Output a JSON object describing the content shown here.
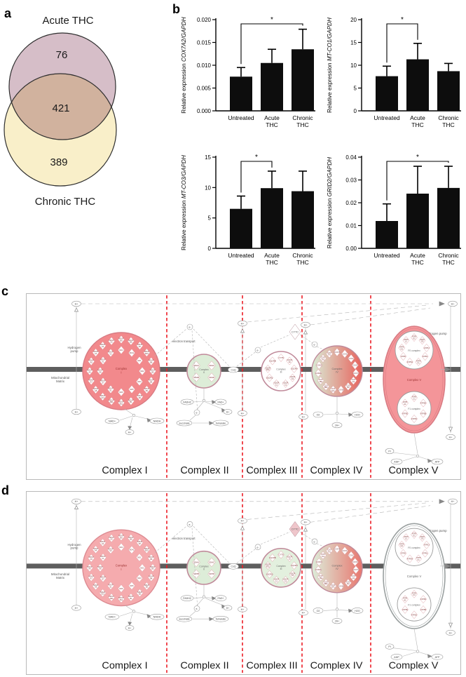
{
  "figure": {
    "panel_labels": {
      "a": "a",
      "b": "b",
      "c": "c",
      "d": "d"
    }
  },
  "venn": {
    "set1_label": "Acute THC",
    "set2_label": "Chronic THC",
    "set1_only": "76",
    "intersection": "421",
    "set2_only": "389",
    "colors": {
      "set1": "#d6bec8",
      "set2": "#f9efc9",
      "outline": "#2e2e2e"
    }
  },
  "chart_data": [
    {
      "type": "bar",
      "ylabel_prefix": "Relative expression ",
      "gene": "COX7A2/GAPDH",
      "categories": [
        [
          "Untreated"
        ],
        [
          "Acute",
          "THC"
        ],
        [
          "Chronic",
          "THC"
        ]
      ],
      "values": [
        0.0075,
        0.0105,
        0.0135
      ],
      "errors": [
        0.002,
        0.003,
        0.0044
      ],
      "ymax": 0.02,
      "ytick_values": [
        0,
        0.005,
        0.01,
        0.015,
        0.02
      ],
      "ytick_labels": [
        "0.000",
        "0.005",
        "0.010",
        "0.015",
        "0.020"
      ],
      "sig": {
        "from": 0,
        "to": 2,
        "label": "*"
      },
      "bar_color": "#0d0d0d"
    },
    {
      "type": "bar",
      "ylabel_prefix": "Relative expression ",
      "gene": "MT-CO1/GAPDH",
      "categories": [
        [
          "Untreated"
        ],
        [
          "Acute",
          "THC"
        ],
        [
          "Chronic",
          "THC"
        ]
      ],
      "values": [
        7.6,
        11.3,
        8.7
      ],
      "errors": [
        2.2,
        3.5,
        1.7
      ],
      "ymax": 20,
      "ytick_values": [
        0,
        5,
        10,
        15,
        20
      ],
      "ytick_labels": [
        "0",
        "5",
        "10",
        "15",
        "20"
      ],
      "sig": {
        "from": 0,
        "to": 1,
        "label": "*"
      },
      "bar_color": "#0d0d0d"
    },
    {
      "type": "bar",
      "ylabel_prefix": "Relative expression ",
      "gene": "MT-CO3/GAPDH",
      "categories": [
        [
          "Untreated"
        ],
        [
          "Acute",
          "THC"
        ],
        [
          "Chronic",
          "THC"
        ]
      ],
      "values": [
        6.5,
        9.9,
        9.4
      ],
      "errors": [
        2.1,
        2.8,
        3.3
      ],
      "ymax": 15,
      "ytick_values": [
        0,
        5,
        10,
        15
      ],
      "ytick_labels": [
        "0",
        "5",
        "10",
        "15"
      ],
      "sig": {
        "from": 0,
        "to": 1,
        "label": "*"
      },
      "bar_color": "#0d0d0d"
    },
    {
      "type": "bar",
      "ylabel_prefix": "Relative expression ",
      "gene": "GRID2/GAPDH",
      "categories": [
        [
          "Untreated"
        ],
        [
          "Acute",
          "THC"
        ],
        [
          "Chronic",
          "THC"
        ]
      ],
      "values": [
        0.012,
        0.024,
        0.0265
      ],
      "errors": [
        0.0075,
        0.012,
        0.0095
      ],
      "ymax": 0.04,
      "ytick_values": [
        0,
        0.01,
        0.02,
        0.03,
        0.04
      ],
      "ytick_labels": [
        "0.00",
        "0.01",
        "0.02",
        "0.03",
        "0.04"
      ],
      "sig": {
        "from": 0,
        "to": 2,
        "label": "*"
      },
      "bar_color": "#0d0d0d"
    }
  ],
  "pathway": {
    "shared": {
      "membrane_label": [
        "Mitochondrial",
        "Matrix"
      ],
      "hydrogen_pump": [
        "Hydrogen",
        "pump"
      ],
      "hydrogen_pump_right": "Hydrogen pump",
      "electron_transport": "electron transport",
      "hplus": "H+",
      "eminus": "e-",
      "nad": "NAD+",
      "nadh": "NADH",
      "fadh2": "FADH2",
      "fad": "FAD+",
      "succinate": "succinate",
      "fumarate": "fumarate",
      "coq": "CoQ",
      "cytc": "CYTC",
      "o2": "O2",
      "h2o": "H2O",
      "twoh": "2H+",
      "pi": "Pi",
      "adp": "ADP",
      "atp": "ATP",
      "f0": "F0 complex",
      "f1": "F1 complex",
      "complex_labels": [
        "Complex I",
        "Complex II",
        "Complex III",
        "Complex IV",
        "Complex V"
      ],
      "complex_short": [
        "I",
        "II",
        "III",
        "IV",
        "V"
      ],
      "complex_word": "Complex",
      "genes": {
        "complex1_outer": [
          "NDUFB9",
          "NDUFB8",
          "NDUFB7",
          "NDUFB10",
          "NDUFB6",
          "NDUFB5",
          "NDUFB4",
          "NDUFB3",
          "NDUFB2",
          "NDUFB1",
          "NDUFB11",
          "NDUFAB1",
          "NDUFA13",
          "NDUFA8",
          "NDUFA7",
          "NDUFA6",
          "NDUFA5",
          "NDUFA4",
          "NDUFA3",
          "NDUFA2"
        ],
        "complex1_inner": [
          "ND4",
          "ND4L",
          "ND1",
          "ND2",
          "ND3",
          "ND5",
          "ND6",
          "NDUFS1",
          "NDUFS7",
          "NDUFS8",
          "NDUFV1",
          "NDUFV2"
        ],
        "complex2": [
          "SDHA",
          "SDHC",
          "SDHB",
          "SDHD"
        ],
        "complex3": [
          "CYTB",
          "UQCR10",
          "UQCRH",
          "UQCRC2",
          "UQCRC1",
          "UQCR11",
          "UQCRQ",
          "UQCRFS1",
          "UQCRB"
        ],
        "complex4": [
          "COX7B",
          "COX1",
          "COX2",
          "COX3",
          "COX7C",
          "COX4I1",
          "COX4I2",
          "COX5A",
          "COX6A1",
          "COX6B2",
          "COX7B2",
          "COX8A",
          "COX6C",
          "COX7A1",
          "COX7AL"
        ],
        "complex5_f0": [
          "ATP5G1",
          "ATP5G3",
          "ATP5J",
          "ATP5L",
          "ATP5F1",
          "ATP5H",
          "ATP5I",
          "ATP5G2",
          "ATP5L2"
        ],
        "complex5_f1": [
          "ATP5C1",
          "ATP5D",
          "ATP5B",
          "ATP5O",
          "ATP5E",
          "ATP5A1"
        ]
      }
    },
    "panels": {
      "c": {
        "colors": {
          "c1_fill": "#F2898C",
          "c1_stroke": "#D87C84",
          "c2_fill": "#DDEDD8",
          "c3_fill": "#FFFFFF",
          "c4_grad_left": "#D9ECD6",
          "c4_grad_right": "#E7625C",
          "c5_fill": "#F49599",
          "c5_stroke": "#D87C84",
          "cytc_fill": "#FFFFFF",
          "ring_stroke": "#C08A9A",
          "diamond_stroke": "#DFA0A6",
          "gene_text": "#7a2e2e"
        }
      },
      "d": {
        "colors": {
          "c1_fill": "#F5ABAE",
          "c1_stroke": "#DD8B92",
          "c2_fill": "#DDEDD8",
          "c3_fill": "#E3F0DE",
          "c4_grad_left": "#DCEDDA",
          "c4_grad_right": "#E8766E",
          "c5_fill": "#FFFFFF",
          "c5_stroke": "#9AA0A0",
          "cytc_fill": "#EFC6CB",
          "ring_stroke": "#C08A9A",
          "diamond_stroke": "#DFA0A6",
          "gene_text": "#7a2e2e"
        }
      }
    }
  }
}
